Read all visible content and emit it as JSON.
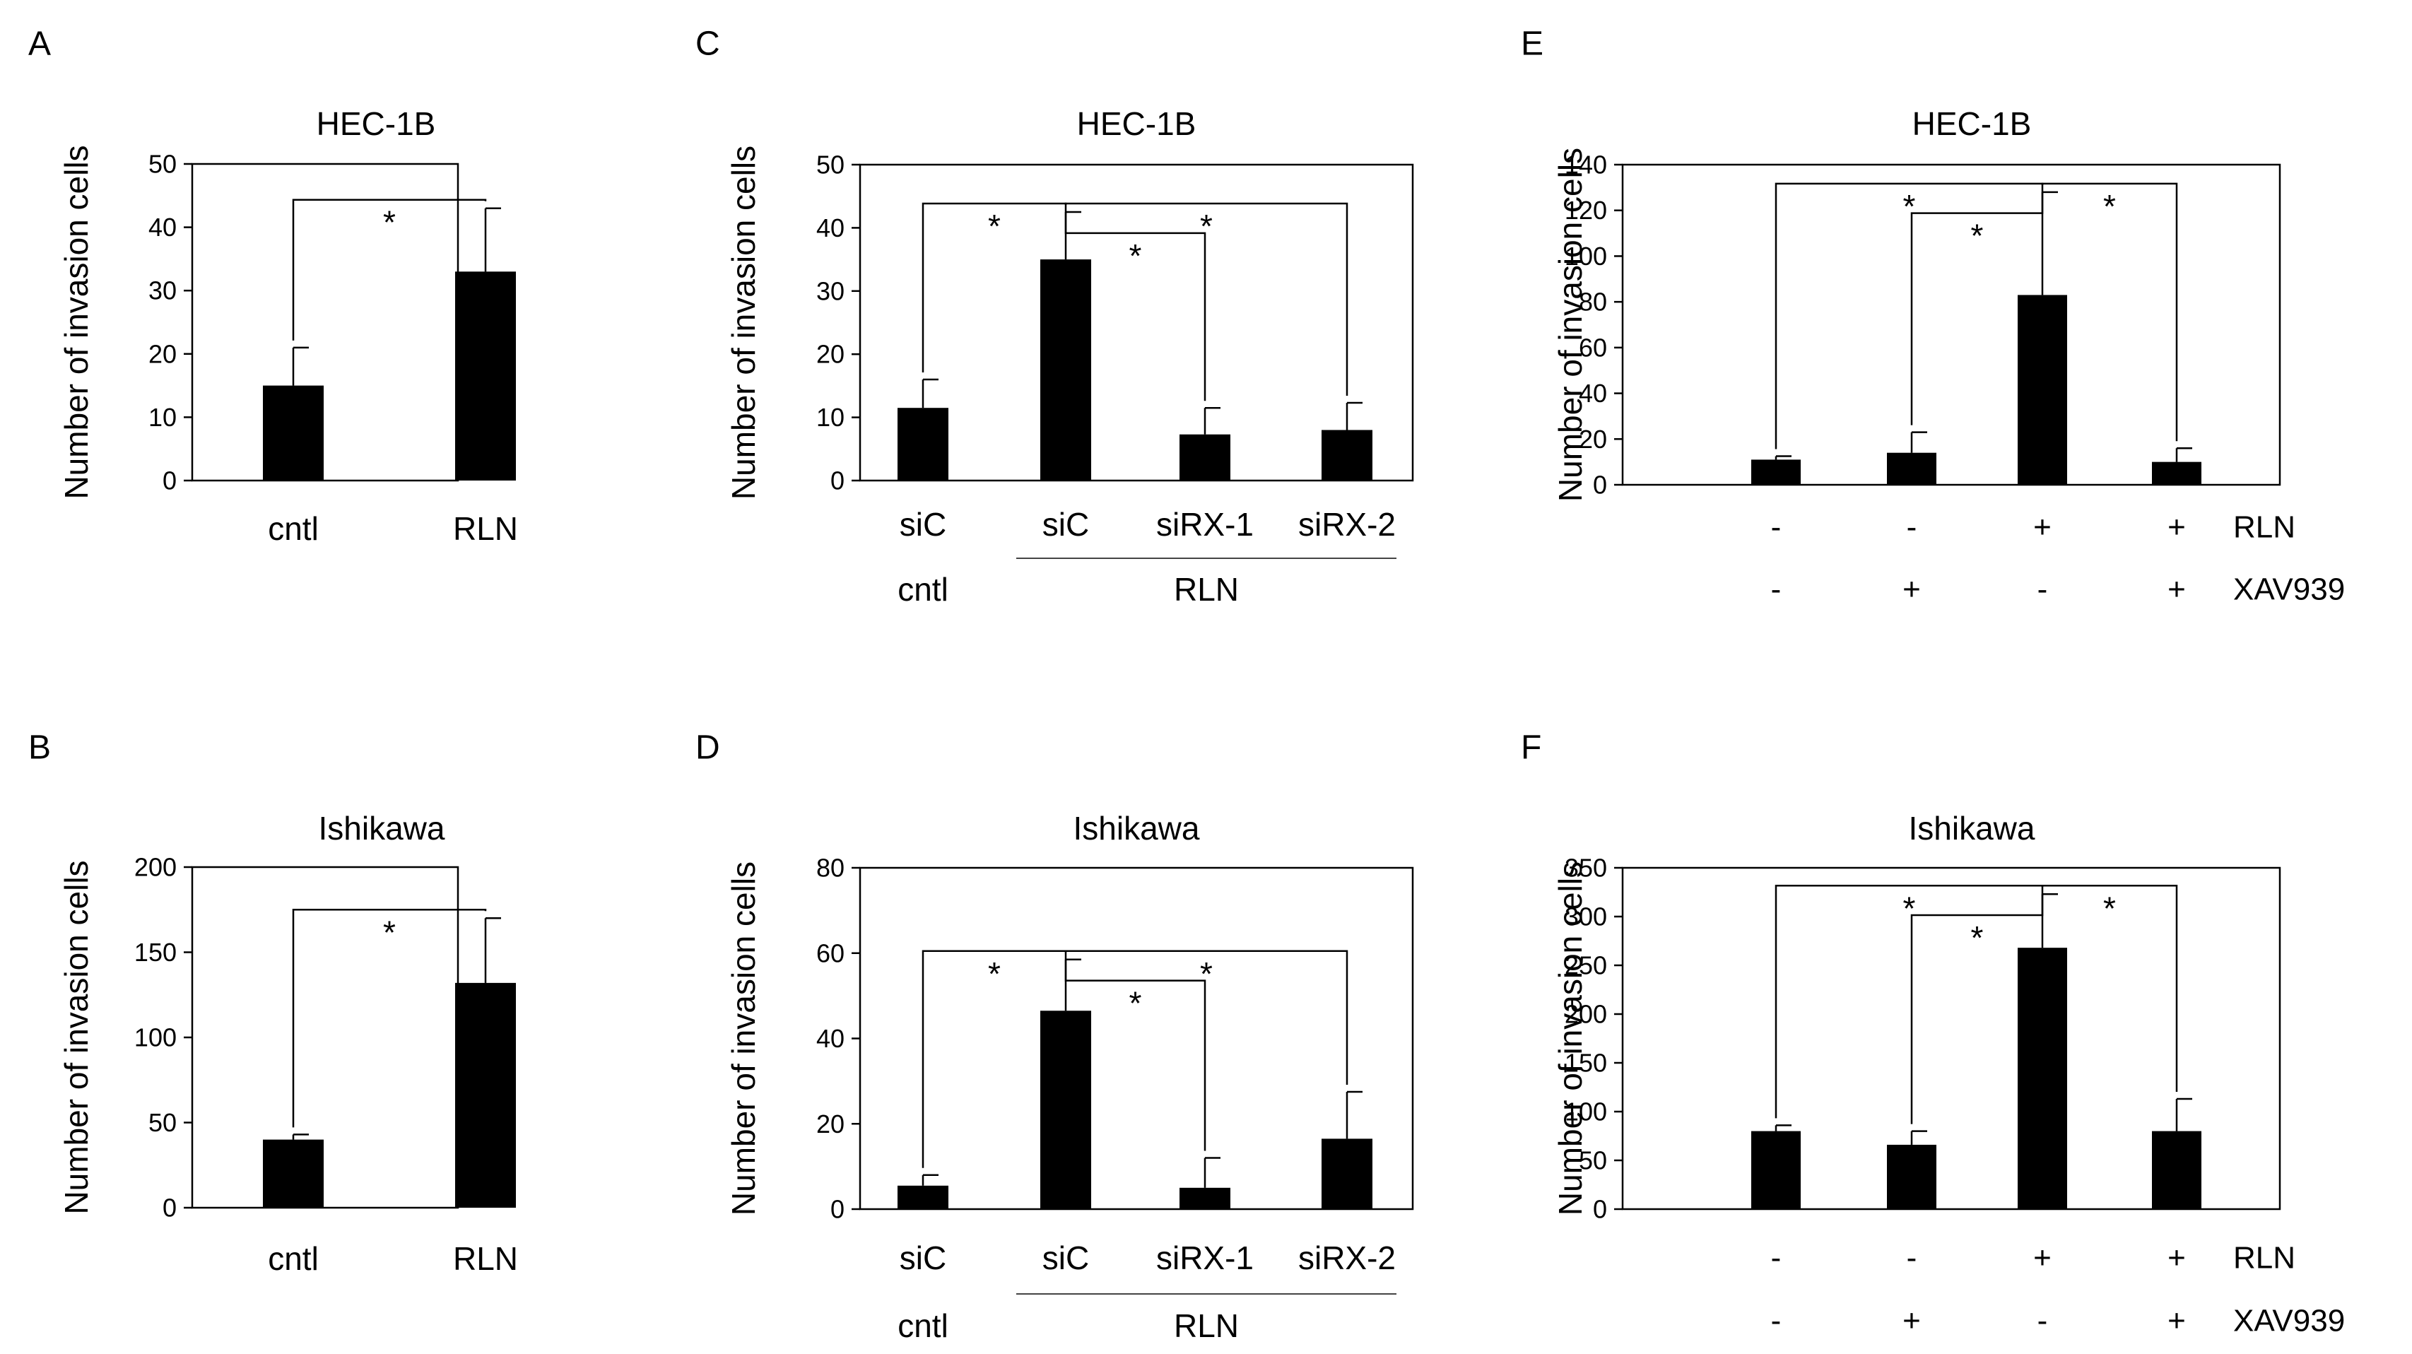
{
  "figure": {
    "panels": [
      {
        "id": "A",
        "title": "HEC-1B",
        "ylabel": "Number of invasion cells"
      },
      {
        "id": "B",
        "title": "Ishikawa",
        "ylabel": "Number of invasion cells"
      },
      {
        "id": "C",
        "title": "HEC-1B",
        "ylabel": "Number of invasion cells"
      },
      {
        "id": "D",
        "title": "Ishikawa",
        "ylabel": "Number of invasion cells"
      },
      {
        "id": "E",
        "title": "HEC-1B",
        "ylabel": "Number of invasion cells"
      },
      {
        "id": "F",
        "title": "Ishikawa",
        "ylabel": "Number of invasion cells"
      }
    ]
  },
  "colors": {
    "bar": "#000000",
    "axis": "#000000",
    "background": "#ffffff"
  },
  "chart_data": [
    {
      "panel": "A",
      "type": "bar",
      "title": "HEC-1B",
      "ylabel": "Number of invasion cells",
      "xlabel": "",
      "ylim": [
        0,
        50
      ],
      "yticks": [
        0,
        10,
        20,
        30,
        40,
        50
      ],
      "categories": [
        "cntl",
        "RLN"
      ],
      "values": [
        15,
        33
      ],
      "errors": [
        6,
        10
      ],
      "significance": [
        {
          "from": 0,
          "to": 1,
          "label": "*"
        }
      ]
    },
    {
      "panel": "B",
      "type": "bar",
      "title": "Ishikawa",
      "ylabel": "Number of invasion cells",
      "xlabel": "",
      "ylim": [
        0,
        200
      ],
      "yticks": [
        0,
        50,
        100,
        150,
        200
      ],
      "categories": [
        "cntl",
        "RLN"
      ],
      "values": [
        40,
        132
      ],
      "errors": [
        3,
        38
      ],
      "significance": [
        {
          "from": 0,
          "to": 1,
          "label": "*"
        }
      ]
    },
    {
      "panel": "C",
      "type": "bar",
      "title": "HEC-1B",
      "ylabel": "Number of invasion cells",
      "xlabel": "",
      "ylim": [
        0,
        50
      ],
      "yticks": [
        0,
        10,
        20,
        30,
        40,
        50
      ],
      "categories": [
        "siC",
        "siC",
        "siRX-1",
        "siRX-2"
      ],
      "values": [
        11.5,
        35,
        7.3,
        8
      ],
      "errors": [
        4.5,
        7.5,
        4.2,
        4.3
      ],
      "groups": [
        {
          "label": "cntl",
          "start": 0,
          "end": 0,
          "line": false
        },
        {
          "label": "RLN",
          "start": 1,
          "end": 3,
          "line": true
        }
      ],
      "significance": [
        {
          "from": 0,
          "to": 1,
          "label": "*"
        },
        {
          "from": 1,
          "to": 2,
          "label": "*"
        },
        {
          "from": 1,
          "to": 3,
          "label": "*"
        }
      ]
    },
    {
      "panel": "D",
      "type": "bar",
      "title": "Ishikawa",
      "ylabel": "Number of invasion cells",
      "xlabel": "",
      "ylim": [
        0,
        80
      ],
      "yticks": [
        0,
        20,
        40,
        60,
        80
      ],
      "categories": [
        "siC",
        "siC",
        "siRX-1",
        "siRX-2"
      ],
      "values": [
        5.5,
        46.5,
        5,
        16.5
      ],
      "errors": [
        2.5,
        12,
        7,
        11
      ],
      "groups": [
        {
          "label": "cntl",
          "start": 0,
          "end": 0,
          "line": false
        },
        {
          "label": "RLN",
          "start": 1,
          "end": 3,
          "line": true
        }
      ],
      "significance": [
        {
          "from": 0,
          "to": 1,
          "label": "*"
        },
        {
          "from": 1,
          "to": 2,
          "label": "*"
        },
        {
          "from": 1,
          "to": 3,
          "label": "*"
        }
      ]
    },
    {
      "panel": "E",
      "type": "bar",
      "title": "HEC-1B",
      "ylabel": "Number of invasion cells",
      "xlabel": "",
      "ylim": [
        0,
        140
      ],
      "yticks": [
        0,
        20,
        40,
        60,
        80,
        100,
        120,
        140
      ],
      "categories": [
        "",
        "",
        "",
        ""
      ],
      "values": [
        11,
        14,
        83,
        10
      ],
      "errors": [
        1.5,
        9,
        45,
        6
      ],
      "conditions": [
        {
          "label": "RLN",
          "values": [
            "-",
            "-",
            "+",
            "+"
          ]
        },
        {
          "label": "XAV939",
          "values": [
            "-",
            "+",
            "-",
            "+"
          ]
        }
      ],
      "significance": [
        {
          "from": 0,
          "to": 2,
          "label": "*"
        },
        {
          "from": 1,
          "to": 2,
          "label": "*"
        },
        {
          "from": 2,
          "to": 3,
          "label": "*"
        }
      ]
    },
    {
      "panel": "F",
      "type": "bar",
      "title": "Ishikawa",
      "ylabel": "Number of invasion cells",
      "xlabel": "",
      "ylim": [
        0,
        350
      ],
      "yticks": [
        0,
        50,
        100,
        150,
        200,
        250,
        300,
        350
      ],
      "categories": [
        "",
        "",
        "",
        ""
      ],
      "values": [
        80,
        66,
        268,
        80
      ],
      "errors": [
        6,
        14,
        55,
        33
      ],
      "conditions": [
        {
          "label": "RLN",
          "values": [
            "-",
            "-",
            "+",
            "+"
          ]
        },
        {
          "label": "XAV939",
          "values": [
            "-",
            "+",
            "-",
            "+"
          ]
        }
      ],
      "significance": [
        {
          "from": 0,
          "to": 2,
          "label": "*"
        },
        {
          "from": 1,
          "to": 2,
          "label": "*"
        },
        {
          "from": 2,
          "to": 3,
          "label": "*"
        }
      ]
    }
  ]
}
